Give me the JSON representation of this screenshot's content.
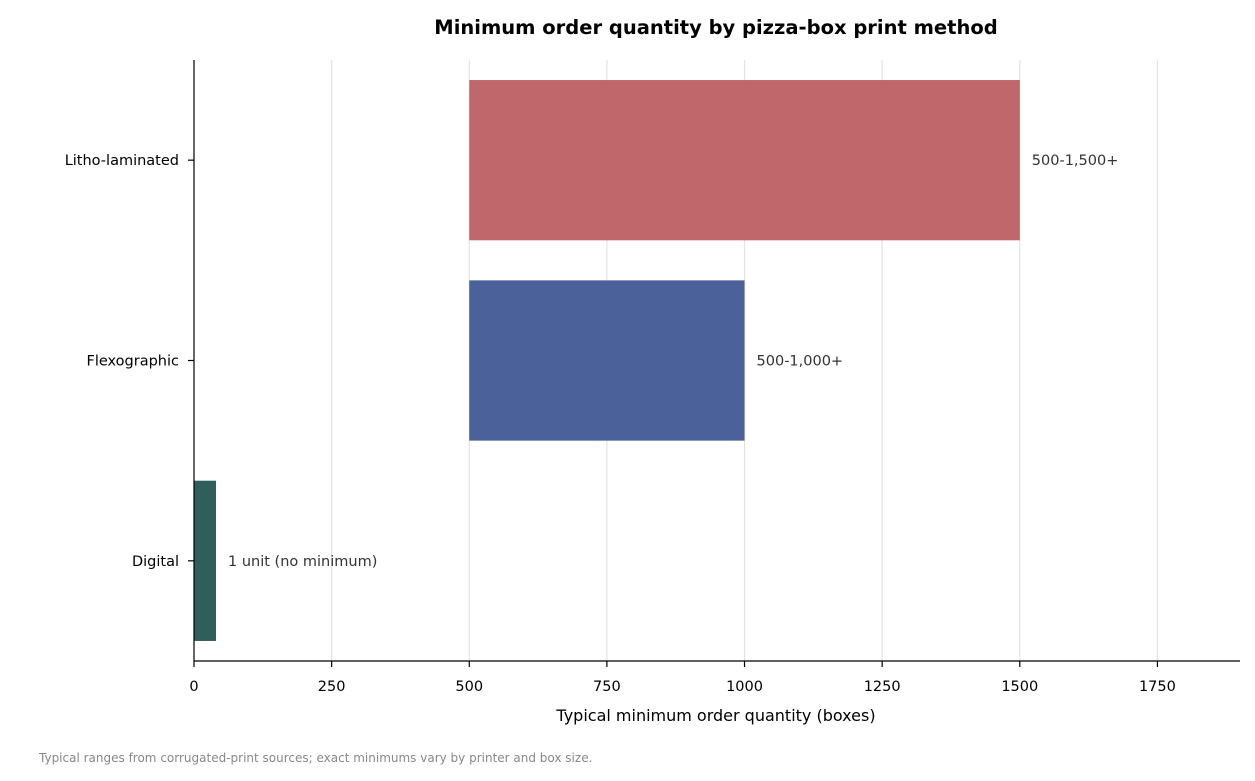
{
  "chart_data": {
    "type": "bar",
    "orientation": "horizontal",
    "title": "Minimum order quantity by pizza-box print method",
    "xlabel": "Typical minimum order quantity (boxes)",
    "ylabel": "",
    "categories": [
      "Litho-laminated",
      "Flexographic",
      "Digital"
    ],
    "bars": [
      {
        "category": "Litho-laminated",
        "start": 500,
        "end": 1500,
        "label": "500-1,500+",
        "color": "#c0676b"
      },
      {
        "category": "Flexographic",
        "start": 500,
        "end": 1000,
        "label": "500-1,000+",
        "color": "#4a6299"
      },
      {
        "category": "Digital",
        "start": 0,
        "end": 40,
        "label": "1 unit (no minimum)",
        "color": "#2f5f5b"
      }
    ],
    "xlim": [
      0,
      1900
    ],
    "xticks": [
      0,
      250,
      500,
      750,
      1000,
      1250,
      1500,
      1750
    ],
    "grid": "vertical",
    "footnote": "Typical ranges from corrugated-print sources; exact minimums vary by printer and box size."
  }
}
